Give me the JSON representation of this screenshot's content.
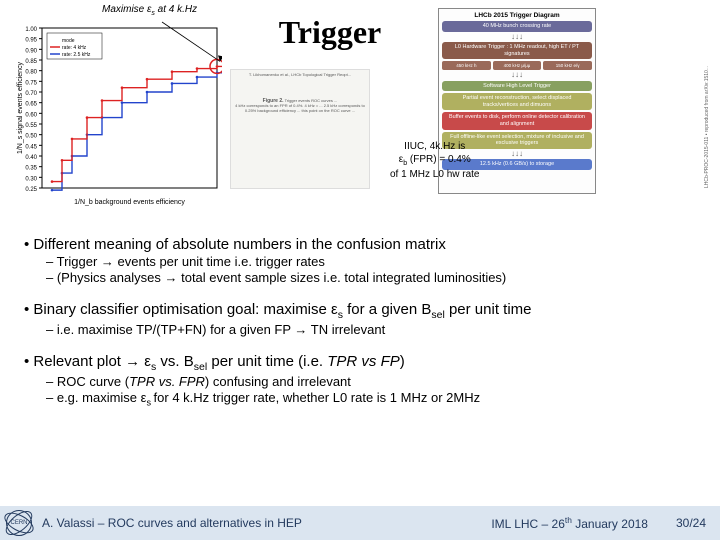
{
  "roc_caption_pre": "Maximise ε",
  "roc_caption_sub": "s",
  "roc_caption_post": " at 4 k.Hz",
  "title": "Trigger",
  "annotation": {
    "line1": "IIUC, 4k.Hz is",
    "line2a": "ε",
    "line2sub": "b",
    "line2b": " (FPR) = 0.4%",
    "line3": "of 1 MHz L0 hw rate"
  },
  "roc": {
    "xlabel": "1/N_b background events efficiency",
    "ylabel": "1/N_s signal events efficiency",
    "legend": [
      "mode",
      "rate: 4 kHz",
      "rate: 2.5 kHz"
    ],
    "ytick_min": 0.25,
    "ytick_max": 1.0,
    "ytick_step": 0.05,
    "red_points": [
      [
        10,
        0.28
      ],
      [
        20,
        0.38
      ],
      [
        30,
        0.48
      ],
      [
        45,
        0.58
      ],
      [
        60,
        0.66
      ],
      [
        80,
        0.72
      ],
      [
        105,
        0.76
      ],
      [
        130,
        0.795
      ],
      [
        155,
        0.81
      ],
      [
        175,
        0.82
      ],
      [
        195,
        0.825
      ]
    ],
    "blue_points": [
      [
        10,
        0.24
      ],
      [
        20,
        0.32
      ],
      [
        30,
        0.4
      ],
      [
        45,
        0.5
      ],
      [
        60,
        0.58
      ],
      [
        80,
        0.65
      ],
      [
        105,
        0.7
      ],
      [
        130,
        0.74
      ],
      [
        155,
        0.77
      ],
      [
        175,
        0.79
      ],
      [
        195,
        0.8
      ]
    ],
    "circle_point_index": 9,
    "colors": {
      "red": "#d22",
      "blue": "#24c",
      "axis": "#000",
      "grid": "#999"
    }
  },
  "paper_ref": {
    "author_line": "T. Likhomanenko et al., LHCb Topological Trigger Reopt...",
    "fig_label": "Figure 2.",
    "fig_text": "Trigger events ROC curves ...",
    "body": "4 kHz corresponds to an FPR of 0.4%. 4 kHz = ... 2.5 kHz corresponds to 0.25% background efficiency ... this point on the ROC curve ..."
  },
  "lhcb": {
    "header": "LHCb 2015 Trigger Diagram",
    "rows": [
      {
        "text": "40 MHz bunch crossing rate",
        "bg": "#6a6a9a"
      },
      {
        "text": "L0 Hardware Trigger : 1 MHz readout, high ET / PT signatures",
        "bg": "#8a5a4a"
      }
    ],
    "tri": [
      {
        "text": "450 kHz h",
        "bg": "#9a6a5a"
      },
      {
        "text": "400 kHz μ/μμ",
        "bg": "#9a6a5a"
      },
      {
        "text": "150 kHz e/γ",
        "bg": "#9a6a5a"
      }
    ],
    "mid": {
      "text": "Software High Level Trigger",
      "bg": "#88a060"
    },
    "rows2": [
      {
        "text": "Partial event reconstruction, select displaced tracks/vertices and dimuons",
        "bg": "#b0b060"
      },
      {
        "text": "Buffer events to disk, perform online detector calibration and alignment",
        "bg": "#c84a4a"
      },
      {
        "text": "Full offline-like event selection, mixture of inclusive and exclusive triggers",
        "bg": "#b0b060"
      }
    ],
    "footer": {
      "text": "12.5 kHz (0.6 GB/s) to storage",
      "bg": "#5a7acc"
    },
    "side": "LHCb-PROC-2015-011 • reproduced from arXiv:1510..."
  },
  "bullets": [
    {
      "main": "Different meaning of absolute numbers in the confusion matrix",
      "subs": [
        "– Trigger → events per unit time i.e. trigger rates",
        "– (Physics analyses → total event sample sizes i.e. total integrated luminosities)"
      ]
    },
    {
      "main_parts": [
        "Binary classifier optimisation goal: maximise ε",
        "s",
        " for a given B",
        "sel",
        " per unit time"
      ],
      "subs": [
        "– i.e. maximise TP/(TP+FN) for a given FP → TN irrelevant"
      ]
    },
    {
      "main_parts2": [
        "Relevant plot → ε",
        "s",
        " vs. B",
        "sel",
        " per unit time (i.e. ",
        "TPR vs FP",
        ")"
      ],
      "subs_parts": [
        [
          "– ROC curve (",
          "TPR vs. FPR",
          ") confusing and irrelevant"
        ],
        [
          "– e.g. maximise ε",
          "s ",
          "for 4 k.Hz trigger rate, whether L0 rate is 1 MHz or 2MHz"
        ]
      ]
    }
  ],
  "footer": {
    "left": "A. Valassi – ROC curves and alternatives in HEP",
    "mid_pre": "IML LHC – 26",
    "mid_sup": "th",
    "mid_post": " January 2018",
    "right": "30/24",
    "logo_text": "CERN"
  }
}
